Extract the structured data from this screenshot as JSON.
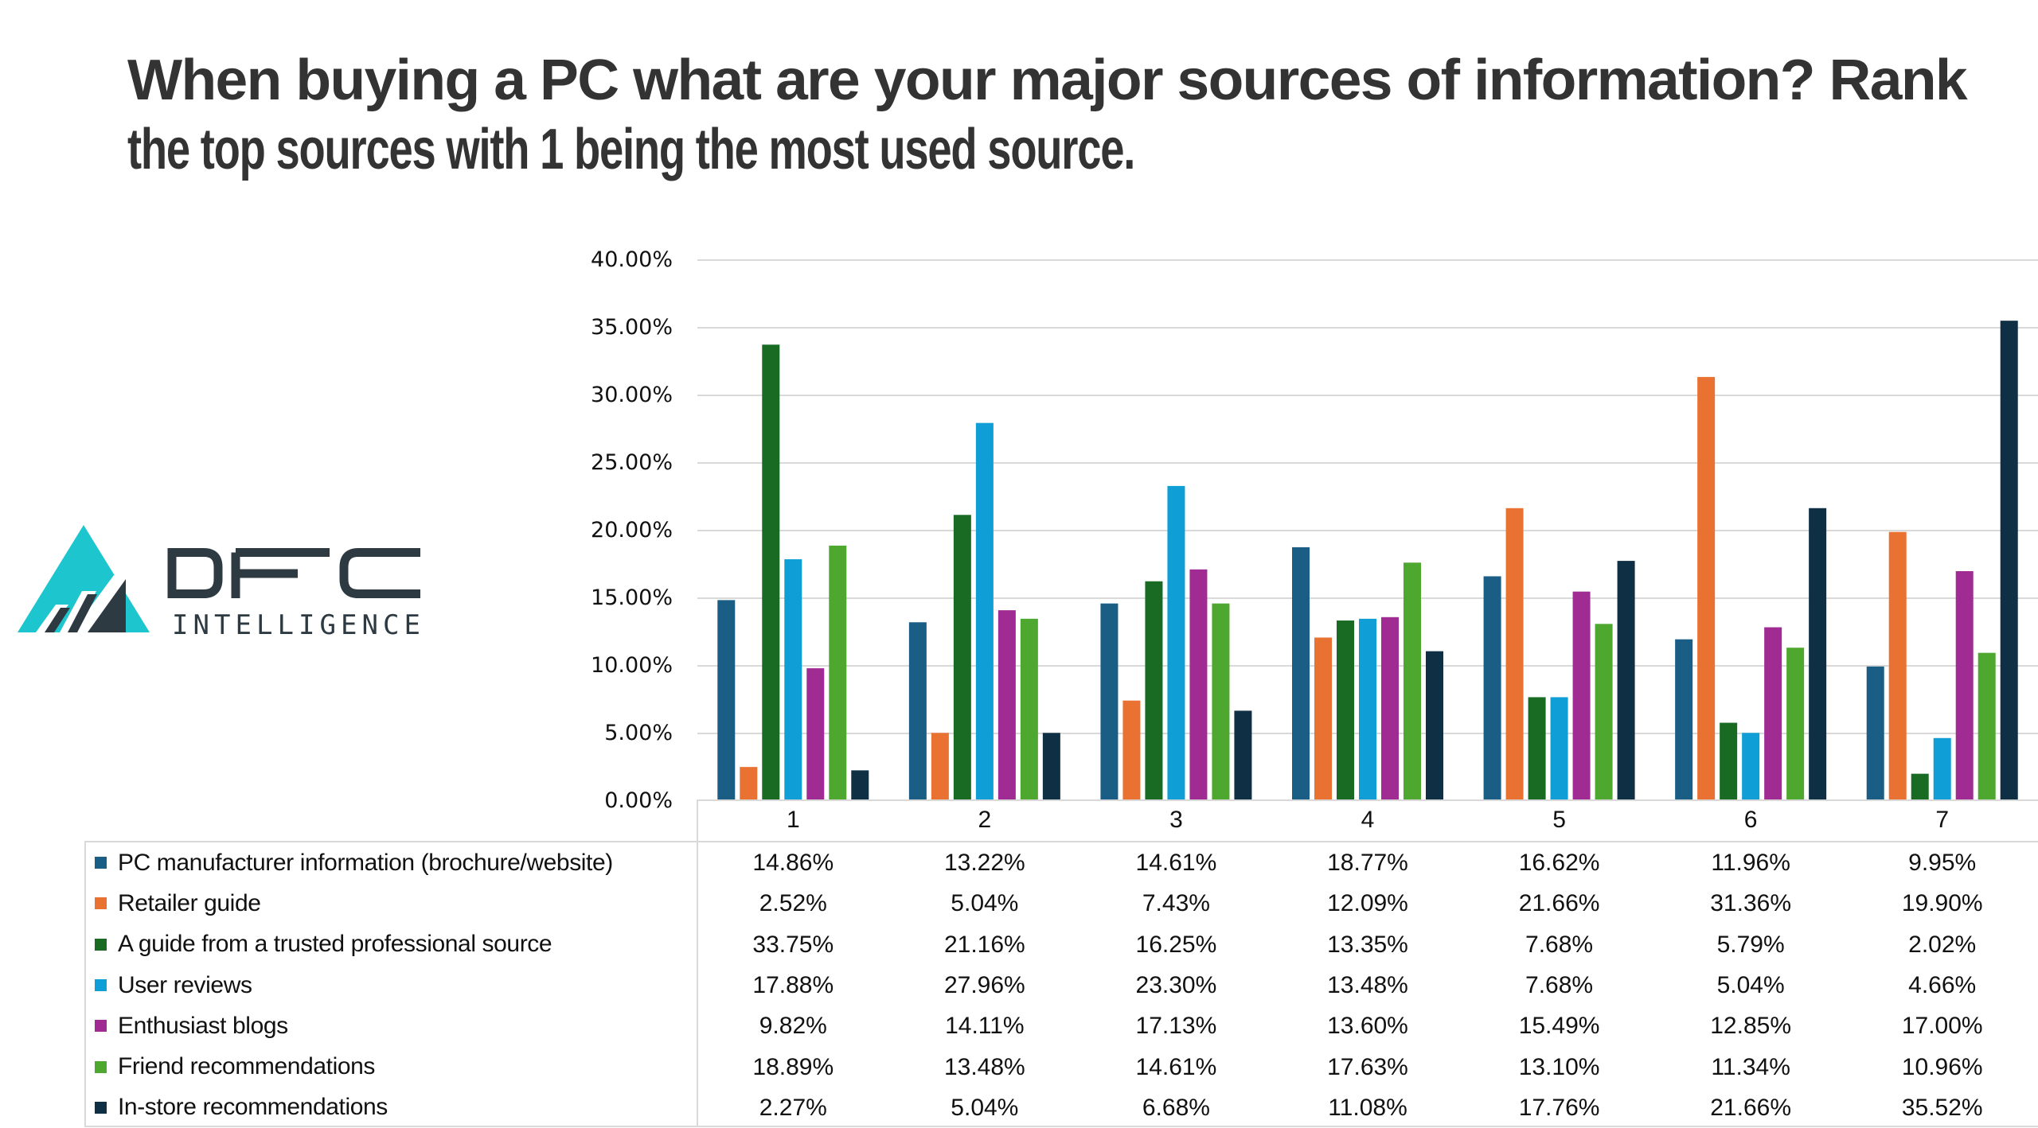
{
  "title_lines": [
    "When buying a PC what are your major sources of information? Rank",
    "the top sources with 1 being the most used source."
  ],
  "logo": {
    "name": "DFC INTELLIGENCE",
    "wordmark_top": "DFC",
    "wordmark_bottom": "INTELLIGENCE",
    "colors": {
      "cyan": "#1dc6cf",
      "dark": "#2d3a42"
    }
  },
  "chart_data": {
    "type": "bar",
    "title": "When buying a PC what are your major sources of information? Rank the top sources with 1 being the most used source.",
    "xlabel": "",
    "ylabel": "",
    "categories": [
      "1",
      "2",
      "3",
      "4",
      "5",
      "6",
      "7"
    ],
    "ylim": [
      0,
      40
    ],
    "yticks": [
      0,
      5,
      10,
      15,
      20,
      25,
      30,
      35,
      40
    ],
    "ytick_labels": [
      "0.00%",
      "5.00%",
      "10.00%",
      "15.00%",
      "20.00%",
      "25.00%",
      "30.00%",
      "35.00%",
      "40.00%"
    ],
    "grid": true,
    "legend": "data-table-bottom",
    "series": [
      {
        "name": "PC manufacturer information (brochure/website)",
        "color": "#1a5e85",
        "values": [
          14.86,
          13.22,
          14.61,
          18.77,
          16.62,
          11.96,
          9.95
        ],
        "labels": [
          "14.86%",
          "13.22%",
          "14.61%",
          "18.77%",
          "16.62%",
          "11.96%",
          "9.95%"
        ]
      },
      {
        "name": "Retailer guide",
        "color": "#e97132",
        "values": [
          2.52,
          5.04,
          7.43,
          12.09,
          21.66,
          31.36,
          19.9
        ],
        "labels": [
          "2.52%",
          "5.04%",
          "7.43%",
          "12.09%",
          "21.66%",
          "31.36%",
          "19.90%"
        ]
      },
      {
        "name": "A guide from a trusted professional source",
        "color": "#196b24",
        "values": [
          33.75,
          21.16,
          16.25,
          13.35,
          7.68,
          5.79,
          2.02
        ],
        "labels": [
          "33.75%",
          "21.16%",
          "16.25%",
          "13.35%",
          "7.68%",
          "5.79%",
          "2.02%"
        ]
      },
      {
        "name": "User reviews",
        "color": "#0f9ed5",
        "values": [
          17.88,
          27.96,
          23.3,
          13.48,
          7.68,
          5.04,
          4.66
        ],
        "labels": [
          "17.88%",
          "27.96%",
          "23.30%",
          "13.48%",
          "7.68%",
          "5.04%",
          "4.66%"
        ]
      },
      {
        "name": "Enthusiast blogs",
        "color": "#a02b93",
        "values": [
          9.82,
          14.11,
          17.13,
          13.6,
          15.49,
          12.85,
          17.0
        ],
        "labels": [
          "9.82%",
          "14.11%",
          "17.13%",
          "13.60%",
          "15.49%",
          "12.85%",
          "17.00%"
        ]
      },
      {
        "name": "Friend recommendations",
        "color": "#4ea72e",
        "values": [
          18.89,
          13.48,
          14.61,
          17.63,
          13.1,
          11.34,
          10.96
        ],
        "labels": [
          "18.89%",
          "13.48%",
          "14.61%",
          "17.63%",
          "13.10%",
          "11.34%",
          "10.96%"
        ]
      },
      {
        "name": "In-store recommendations",
        "color": "#0e2f44",
        "values": [
          2.27,
          5.04,
          6.68,
          11.08,
          17.76,
          21.66,
          35.52
        ],
        "labels": [
          "2.27%",
          "5.04%",
          "6.68%",
          "11.08%",
          "17.76%",
          "21.66%",
          "35.52%"
        ]
      }
    ]
  }
}
